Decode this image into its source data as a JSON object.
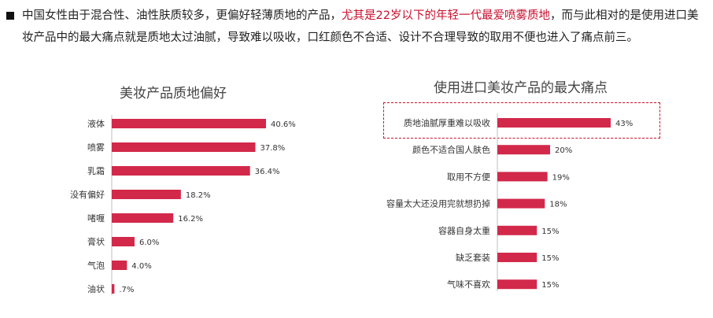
{
  "intro": {
    "text_before": "中国女性由于混合性、油性肤质较多，更偏好轻薄质地的产品，",
    "text_highlight": "尤其是22岁以下的年轻一代最爱喷雾质地",
    "text_after": "，而与此相对的是使用进口美妆产品中的最大痛点就是质地太过油腻，导致难以吸收，口红颜色不合适、设计不合理导致的取用不便也进入了痛点前三。",
    "highlight_color": "#c8102e"
  },
  "bar_color": "#d2294b",
  "chart_data": [
    {
      "type": "bar",
      "orientation": "horizontal",
      "title": "美妆产品质地偏好",
      "categories": [
        "液体",
        "喷雾",
        "乳霜",
        "没有偏好",
        "啫喱",
        "膏状",
        "气泡",
        "油状"
      ],
      "values": [
        40.6,
        37.8,
        36.4,
        18.2,
        16.2,
        6.0,
        4.0,
        0.7
      ],
      "value_labels": [
        "40.6%",
        "37.8%",
        "36.4%",
        "18.2%",
        "16.2%",
        "6.0%",
        "4.0%",
        ".7%"
      ],
      "unit": "%",
      "xlim": [
        0,
        45
      ]
    },
    {
      "type": "bar",
      "orientation": "horizontal",
      "title": "使用进口美妆产品的最大痛点",
      "categories": [
        "质地油腻厚重难以吸收",
        "颜色不适合国人肤色",
        "取用不方便",
        "容量太大还没用完就想扔掉",
        "容器自身太重",
        "缺乏套装",
        "气味不喜欢"
      ],
      "values": [
        43,
        20,
        19,
        18,
        15,
        15,
        15
      ],
      "value_labels": [
        "43%",
        "20%",
        "19%",
        "18%",
        "15%",
        "15%",
        "15%"
      ],
      "unit": "%",
      "xlim": [
        0,
        45
      ],
      "highlighted_category": "质地油腻厚重难以吸收"
    }
  ]
}
